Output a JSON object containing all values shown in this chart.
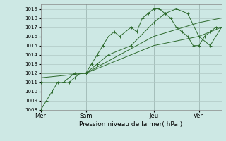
{
  "title": "",
  "xlabel": "Pression niveau de la mer( hPa )",
  "bg_color": "#cde8e4",
  "line_color": "#2d6a2d",
  "grid_color": "#b0c8c4",
  "ylim": [
    1008,
    1019.5
  ],
  "yticks": [
    1008,
    1009,
    1010,
    1011,
    1012,
    1013,
    1014,
    1015,
    1016,
    1017,
    1018,
    1019
  ],
  "xtick_labels": [
    "Mer",
    "Sam",
    "Jeu",
    "Ven"
  ],
  "xtick_positions": [
    0,
    48,
    120,
    168
  ],
  "total_hours": 192,
  "lines": [
    {
      "x": [
        0,
        6,
        12,
        18,
        24,
        30,
        36,
        42,
        48,
        54,
        60,
        66,
        72,
        78,
        84,
        90,
        96,
        102,
        108,
        114,
        120,
        126,
        132,
        138,
        144,
        150,
        156,
        162,
        168,
        174,
        180,
        186,
        192
      ],
      "y": [
        1008,
        1009,
        1010,
        1011,
        1011,
        1011,
        1011.5,
        1012,
        1012,
        1013,
        1014,
        1015,
        1016,
        1016.5,
        1016,
        1016.5,
        1017,
        1016.5,
        1018,
        1018.5,
        1019,
        1019,
        1018.5,
        1018,
        1017,
        1016.5,
        1016,
        1015,
        1015,
        1016,
        1016.5,
        1017,
        1017
      ],
      "markers": true
    },
    {
      "x": [
        0,
        48,
        120,
        168,
        192
      ],
      "y": [
        1012,
        1012,
        1015,
        1016,
        1017
      ],
      "markers": false
    },
    {
      "x": [
        0,
        48,
        120,
        168,
        192
      ],
      "y": [
        1011.5,
        1012,
        1016,
        1017.5,
        1018
      ],
      "markers": false
    },
    {
      "x": [
        0,
        24,
        36,
        48,
        60,
        72,
        96,
        120,
        132,
        144,
        156,
        168,
        180,
        192
      ],
      "y": [
        1011,
        1011,
        1012,
        1012,
        1013,
        1014,
        1015,
        1017.5,
        1018.5,
        1019.0,
        1018.5,
        1016,
        1015,
        1017
      ],
      "markers": true
    }
  ],
  "vlines_x": [
    48,
    120,
    168
  ]
}
